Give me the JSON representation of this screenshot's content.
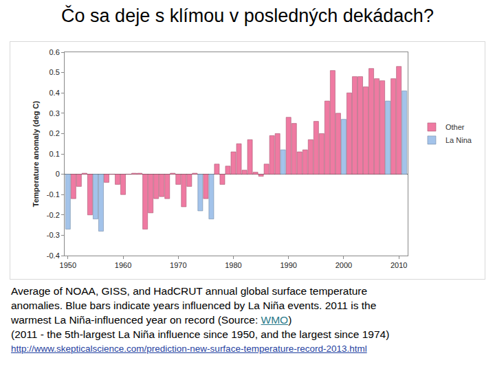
{
  "chart_data": {
    "type": "bar",
    "title": "Čo sa deje s klímou v posledných dekádach?",
    "y_label": "Temperature anomaly (deg C)",
    "x": [
      1950,
      1951,
      1952,
      1953,
      1954,
      1955,
      1956,
      1957,
      1958,
      1959,
      1960,
      1961,
      1962,
      1963,
      1964,
      1965,
      1966,
      1967,
      1968,
      1969,
      1970,
      1971,
      1972,
      1973,
      1974,
      1975,
      1976,
      1977,
      1978,
      1979,
      1980,
      1981,
      1982,
      1983,
      1984,
      1985,
      1986,
      1987,
      1988,
      1989,
      1990,
      1991,
      1992,
      1993,
      1994,
      1995,
      1996,
      1997,
      1998,
      1999,
      2000,
      2001,
      2002,
      2003,
      2004,
      2005,
      2006,
      2007,
      2008,
      2009,
      2010,
      2011
    ],
    "series": [
      {
        "name": "Other",
        "color": "#ef7aa2",
        "values": [
          null,
          -0.12,
          -0.06,
          0.005,
          -0.2,
          null,
          null,
          -0.04,
          0.0,
          -0.05,
          -0.1,
          0.0,
          0.005,
          0.005,
          -0.27,
          -0.19,
          -0.12,
          -0.11,
          -0.12,
          0.005,
          -0.05,
          -0.16,
          -0.06,
          0.005,
          null,
          -0.12,
          null,
          0.05,
          -0.05,
          0.04,
          0.11,
          0.15,
          0.02,
          0.17,
          0.01,
          -0.01,
          0.05,
          0.19,
          0.2,
          null,
          0.28,
          0.25,
          0.11,
          0.12,
          0.17,
          0.26,
          0.2,
          0.36,
          0.51,
          0.3,
          null,
          0.4,
          0.48,
          0.48,
          0.43,
          0.52,
          0.47,
          0.46,
          null,
          0.47,
          0.53,
          null
        ]
      },
      {
        "name": "La Nina",
        "color": "#a3c3ea",
        "values": [
          -0.27,
          null,
          null,
          null,
          null,
          -0.22,
          -0.28,
          null,
          null,
          null,
          null,
          null,
          null,
          null,
          null,
          null,
          null,
          null,
          null,
          null,
          null,
          null,
          null,
          null,
          -0.18,
          null,
          -0.22,
          null,
          null,
          null,
          null,
          null,
          null,
          null,
          null,
          null,
          null,
          null,
          null,
          0.12,
          null,
          null,
          null,
          null,
          null,
          null,
          null,
          null,
          null,
          null,
          0.27,
          null,
          null,
          null,
          null,
          null,
          null,
          null,
          0.36,
          null,
          null,
          0.41
        ]
      }
    ],
    "xlim": [
      1949.4,
      2011.6
    ],
    "xticks": [
      1950,
      1960,
      1970,
      1980,
      1990,
      2000,
      2010
    ],
    "ylim": [
      -0.4,
      0.6
    ],
    "yticks": [
      -0.4,
      -0.3,
      -0.2,
      -0.1,
      0,
      0.1,
      0.2,
      0.3,
      0.4,
      0.5,
      0.6
    ],
    "grid": false,
    "legend": "right",
    "caption": {
      "lines": [
        "Average of NOAA, GISS, and HadCRUT annual global surface temperature",
        "anomalies.  Blue bars indicate years influenced by La Niña events.  2011 is the",
        "warmest La Niña-influenced year on record (Source: WMO)",
        "(2011 - the 5th-largest La Niña influence since 1950, and the largest since 1974)"
      ],
      "link_text": "WMO",
      "url": "http://www.skepticalscience.com/prediction-new-surface-temperature-record-2013.html"
    }
  }
}
